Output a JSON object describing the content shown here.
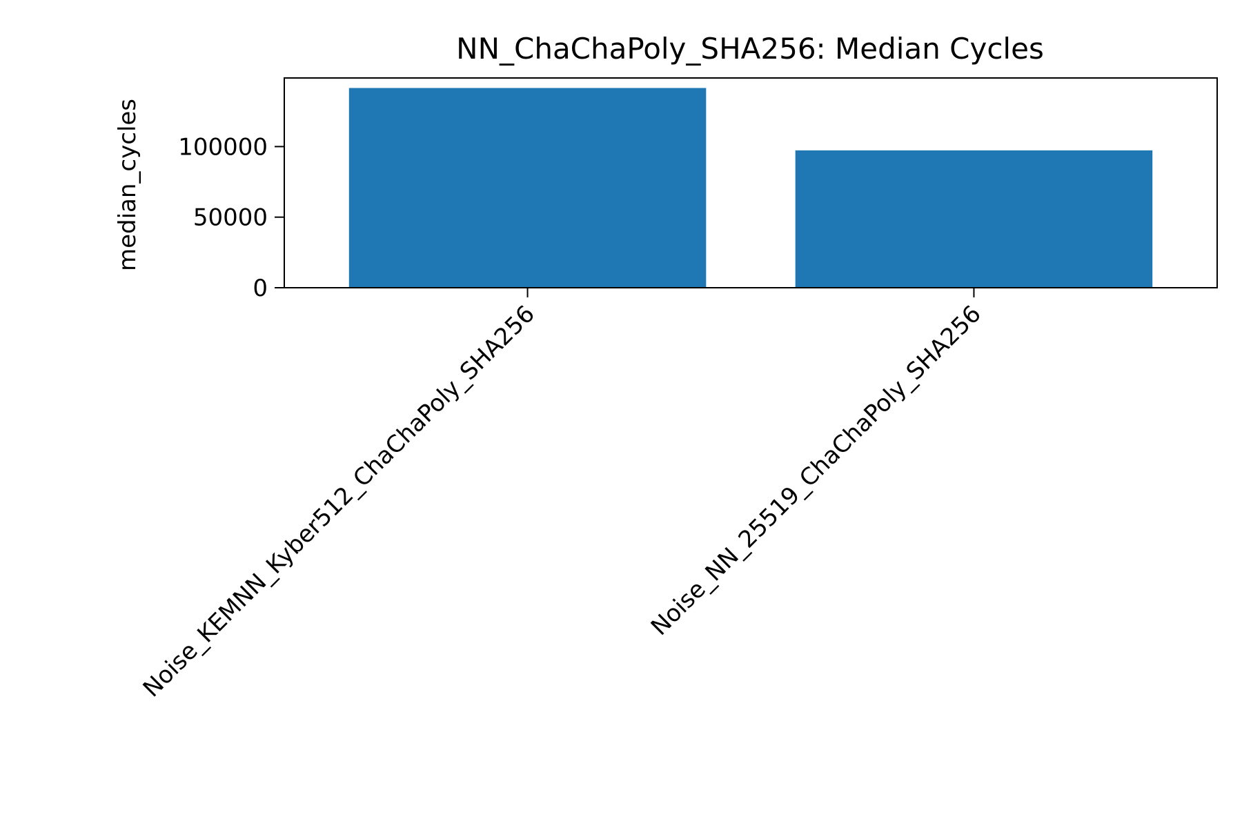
{
  "chart_data": {
    "type": "bar",
    "title": "NN_ChaChaPoly_SHA256: Median Cycles",
    "xlabel": "",
    "ylabel": "median_cycles",
    "categories": [
      "Noise_KEMNN_Kyber512_ChaChaPoly_SHA256",
      "Noise_NN_25519_ChaChaPoly_SHA256"
    ],
    "values": [
      141500,
      97300
    ],
    "ylim": [
      0,
      148600
    ],
    "yticks": [
      0,
      50000,
      100000
    ],
    "ytick_labels": [
      "0",
      "50000",
      "100000"
    ],
    "grid": false,
    "legend": "none",
    "bar_color": "#1f77b4"
  }
}
